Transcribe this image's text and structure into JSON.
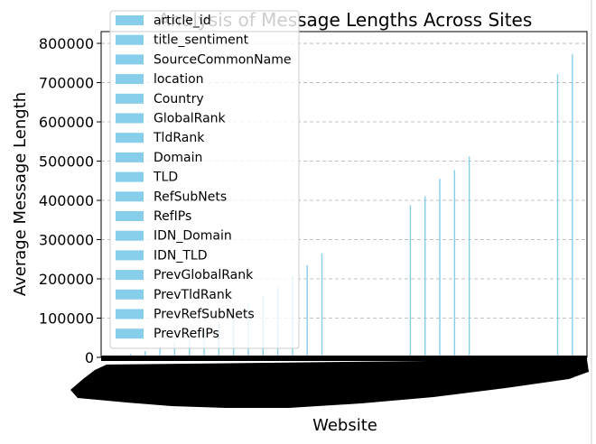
{
  "chart_data": {
    "type": "bar",
    "title": "Analysis of Message Lengths Across Sites",
    "xlabel": "Website",
    "ylabel": "Average Message Length",
    "ylim": [
      0,
      830000
    ],
    "y_ticks": [
      0,
      100000,
      200000,
      300000,
      400000,
      500000,
      600000,
      700000,
      800000
    ],
    "y_tick_labels": [
      "0",
      "100000",
      "200000",
      "300000",
      "400000",
      "500000",
      "600000",
      "700000",
      "800000"
    ],
    "grid": "y-dashed",
    "legend_position": "top-left",
    "x_tick_labels_obscured": true,
    "bar_color": "#87ceeb",
    "legend": [
      "article_id",
      "title_sentiment",
      "SourceCommonName",
      "location",
      "Country",
      "GlobalRank",
      "TldRank",
      "Domain",
      "TLD",
      "RefSubNets",
      "RefIPs",
      "IDN_Domain",
      "IDN_TLD",
      "PrevGlobalRank",
      "PrevTldRank",
      "PrevRefSubNets",
      "PrevRefIPs"
    ],
    "values": [
      3000,
      9000,
      16000,
      25000,
      37000,
      52000,
      70000,
      90000,
      112000,
      136000,
      157000,
      180000,
      206000,
      235000,
      265000,
      0,
      0,
      0,
      0,
      0,
      388000,
      410000,
      455000,
      477000,
      512000,
      0,
      0,
      0,
      0,
      0,
      722000,
      773000
    ]
  }
}
